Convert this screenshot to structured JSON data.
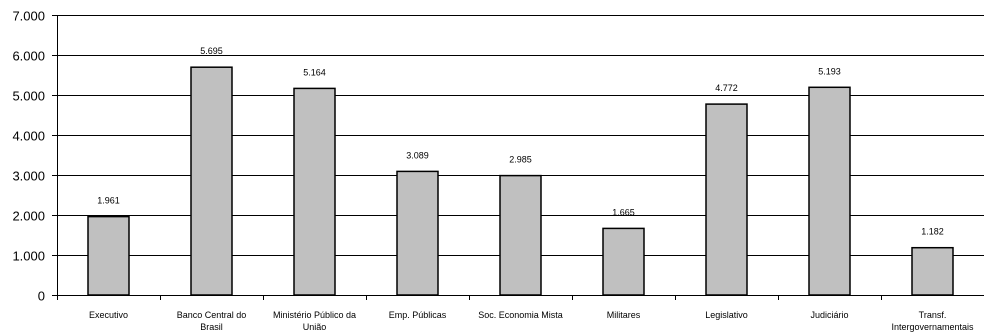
{
  "chart_data": {
    "type": "bar",
    "categories": [
      [
        "Executivo"
      ],
      [
        "Banco Central do",
        "Brasil"
      ],
      [
        "Ministério Público da",
        "União"
      ],
      [
        "Emp. Públicas"
      ],
      [
        "Soc. Economia Mista"
      ],
      [
        "Militares"
      ],
      [
        "Legislativo"
      ],
      [
        "Judiciário"
      ],
      [
        "Transf.",
        "Intergovernamentais"
      ]
    ],
    "values": [
      1961,
      5695,
      5164,
      3089,
      2985,
      1665,
      4772,
      5193,
      1182
    ],
    "data_labels": [
      "1.961",
      "5.695",
      "5.164",
      "3.089",
      "2.985",
      "1.665",
      "4.772",
      "5.193",
      "1.182"
    ],
    "ylim": [
      0,
      7000
    ],
    "yticks": [
      0,
      1000,
      2000,
      3000,
      4000,
      5000,
      6000,
      7000
    ],
    "ytick_labels": [
      "0",
      "1.000",
      "2.000",
      "3.000",
      "4.000",
      "5.000",
      "6.000",
      "7.000"
    ],
    "grid": true,
    "legend": "none",
    "colors": {
      "bar_fill": "#c0c0c0",
      "bar_stroke": "#000000",
      "grid": "#000000"
    }
  }
}
